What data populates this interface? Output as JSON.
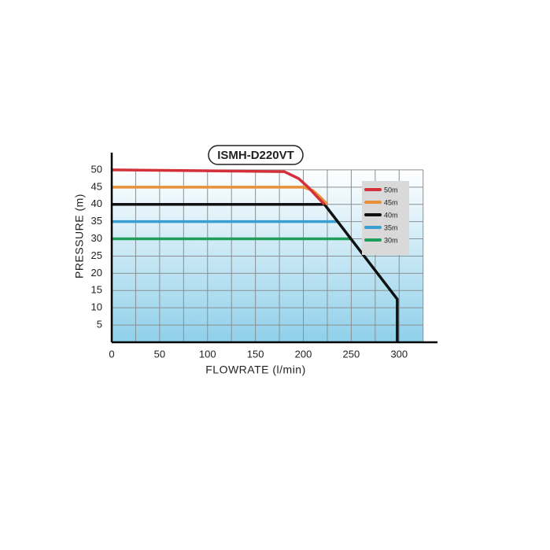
{
  "chart_data": {
    "type": "line",
    "title": "ISMH-D220VT",
    "x_label": "FLOWRATE (l/min)",
    "y_label": "PRESSURE (m)",
    "xlim": [
      0,
      340
    ],
    "ylim": [
      0,
      55
    ],
    "xticks": [
      0,
      50,
      100,
      150,
      200,
      250,
      300
    ],
    "yticks": [
      5,
      10,
      15,
      20,
      25,
      30,
      35,
      40,
      45,
      50
    ],
    "xgrid": [
      0,
      25,
      50,
      75,
      100,
      125,
      150,
      175,
      200,
      225,
      250,
      275,
      300,
      325
    ],
    "ygrid": [
      0,
      5,
      10,
      15,
      20,
      25,
      30,
      35,
      40,
      45,
      50
    ],
    "grid": true,
    "legend": "upper right",
    "series": [
      {
        "name": "50m",
        "color": "#d3303a",
        "x": [
          0,
          180,
          195,
          205,
          215,
          222
        ],
        "values": [
          50,
          49.5,
          47.5,
          45,
          42,
          40
        ]
      },
      {
        "name": "45m",
        "color": "#e8903a",
        "x": [
          0,
          200,
          210,
          218,
          225
        ],
        "values": [
          45,
          45,
          44,
          42,
          40
        ]
      },
      {
        "name": "40m",
        "color": "#111111",
        "x": [
          0,
          222,
          298,
          298
        ],
        "values": [
          40,
          40,
          12.5,
          0
        ]
      },
      {
        "name": "35m",
        "color": "#3a9fd0",
        "x": [
          0,
          236
        ],
        "values": [
          35,
          35
        ]
      },
      {
        "name": "30m",
        "color": "#1f9e5a",
        "x": [
          0,
          250
        ],
        "values": [
          30,
          30
        ]
      }
    ]
  }
}
